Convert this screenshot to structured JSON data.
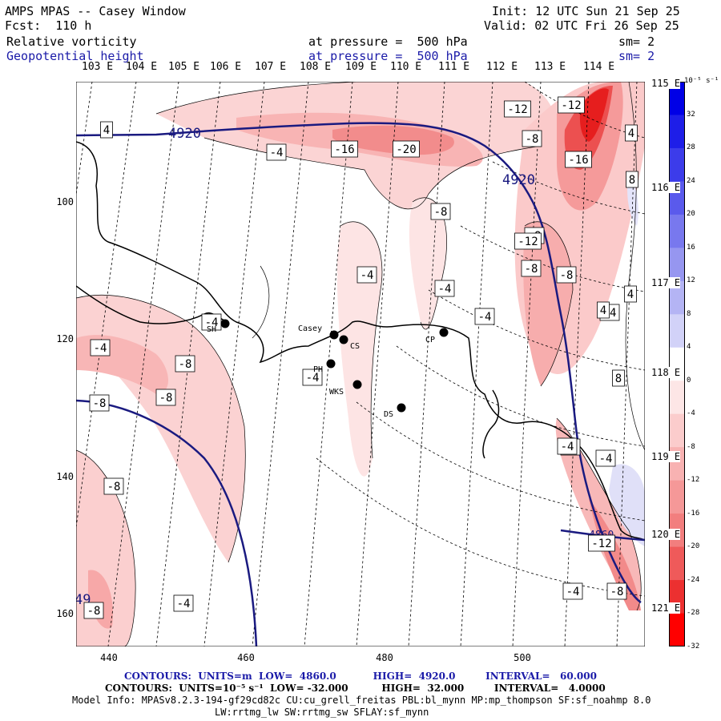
{
  "header": {
    "title": "AMPS MPAS -- Casey Window",
    "forecast": "Fcst:  110 h",
    "init": "Init: 12 UTC Sun 21 Sep 25",
    "valid": "Valid: 02 UTC Fri 26 Sep 25",
    "field1": "Relative vorticity",
    "field1_level": "at pressure =  500 hPa",
    "field1_sm": "sm= 2",
    "field2": "Geopotential height",
    "field2_level": "at pressure =  500 hPa",
    "field2_sm": "sm= 2"
  },
  "longitude_labels": [
    "103 E",
    "104 E",
    "105 E",
    "106 E",
    "107 E",
    "108 E",
    "109 E",
    "110 E",
    "111 E",
    "112 E",
    "113 E",
    "114 E"
  ],
  "right_lon_labels": [
    "115 E",
    "116 E",
    "117 E",
    "118 E",
    "119 E",
    "120 E",
    "121 E"
  ],
  "y_axis_labels": [
    "100",
    "120",
    "140",
    "160"
  ],
  "x_axis_labels": [
    "440",
    "460",
    "480",
    "500"
  ],
  "colorbar": {
    "units": "10⁻⁵ s⁻¹",
    "labels": [
      "32",
      "28",
      "24",
      "20",
      "16",
      "12",
      "8",
      "4",
      "0",
      "-4",
      "-8",
      "-12",
      "-16",
      "-20",
      "-24",
      "-28",
      "-32"
    ],
    "colors": [
      "#0000e6",
      "#1e1ee8",
      "#3c3cea",
      "#5a5aec",
      "#7878ee",
      "#9696f0",
      "#b4b4f4",
      "#d2d2f8",
      "#ffffff",
      "#fde6e6",
      "#fbcccc",
      "#f8b2b2",
      "#f59898",
      "#f27e7e",
      "#ef5a5a",
      "#ec3030",
      "#ff0000"
    ]
  },
  "stations": [
    {
      "name": "SH"
    },
    {
      "name": "Casey"
    },
    {
      "name": "CS"
    },
    {
      "name": "PH"
    },
    {
      "name": "WKS"
    },
    {
      "name": "DS"
    },
    {
      "name": "CP"
    }
  ],
  "height_labels": [
    "4920",
    "4920",
    "4860",
    "49"
  ],
  "vorticity_labels": [
    "4",
    "-4",
    "-16",
    "-20",
    "-12",
    "-12",
    "-8",
    "-16",
    "8",
    "-8",
    "-8",
    "-12",
    "-8",
    "-8",
    "-4",
    "-4",
    "-4",
    "-4",
    "-4",
    "-8",
    "-8",
    "-8",
    "-4",
    "-4",
    "4",
    "4",
    "-4",
    "8",
    "-4",
    "-8",
    "-8",
    "-4",
    "-4",
    "-8",
    "-12",
    "-4",
    "4"
  ],
  "footer": {
    "line1": "CONTOURS:  UNITS=m  LOW=  4860.0           HIGH=  4920.0         INTERVAL=   60.000",
    "line2": "CONTOURS:  UNITS=10⁻⁵ s⁻¹  LOW= -32.000          HIGH=  32.000         INTERVAL=   4.0000",
    "model1": "Model Info: MPASv8.2.3-194-gf29cd82c CU:cu_grell_freitas PBL:bl_mynn MP:mp_thompson SF:sf_noahmp 8.0",
    "model2": "LW:rrtmg_lw SW:rrtmg_sw SFLAY:sf_mynn"
  }
}
